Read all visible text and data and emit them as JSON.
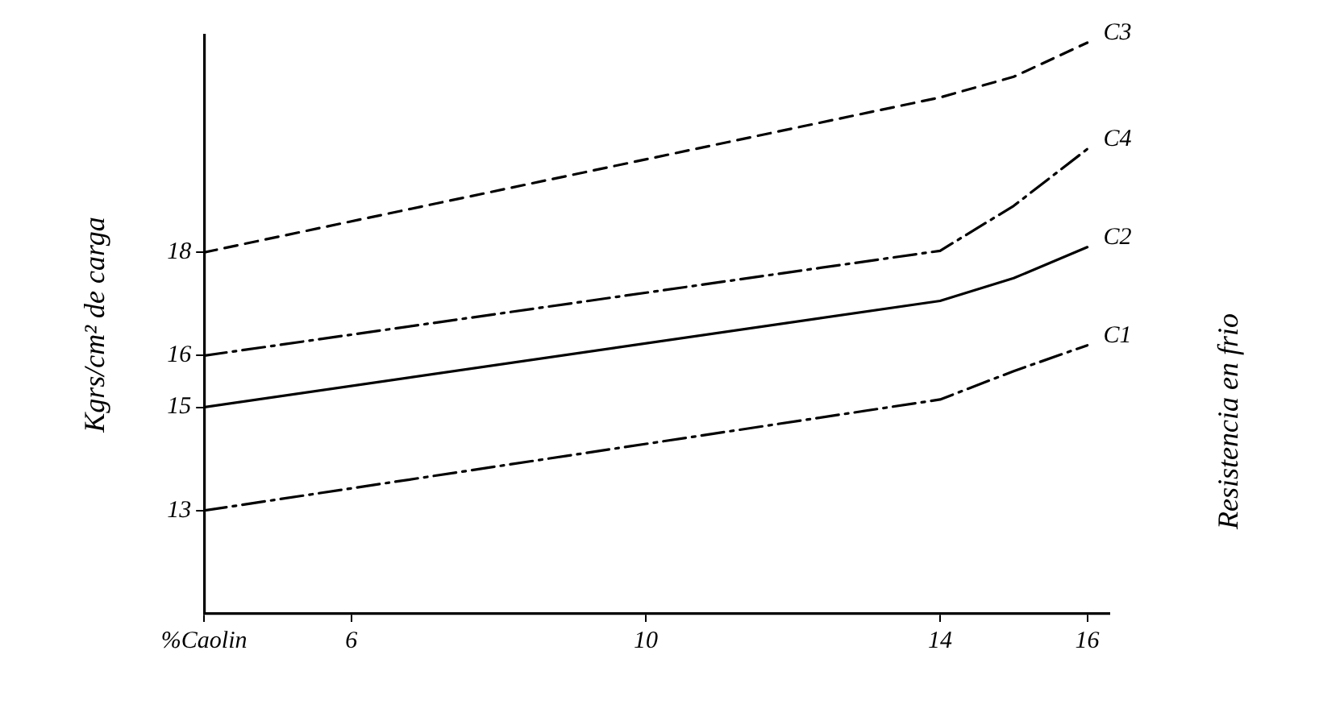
{
  "chart_data": {
    "type": "line",
    "ylabel": "Kgrs/cm² de carga",
    "y2label": "Resistencia en frio",
    "x": [
      4,
      14,
      15,
      16
    ],
    "series": [
      {
        "name": "C1",
        "color": "#000000",
        "line_style": "dashdot",
        "values": [
          13,
          15.15,
          15.7,
          16.2
        ]
      },
      {
        "name": "C2",
        "color": "#000000",
        "line_style": "solid",
        "values": [
          15,
          17.06,
          17.5,
          18.1
        ]
      },
      {
        "name": "C4",
        "color": "#000000",
        "line_style": "dashdot",
        "values": [
          16,
          18.03,
          18.9,
          20
        ]
      },
      {
        "name": "C3",
        "color": "#000000",
        "line_style": "dashed",
        "values": [
          18,
          21,
          21.4,
          22.06
        ]
      }
    ],
    "xlim": [
      4,
      16.3
    ],
    "xticks": [
      {
        "value": 4,
        "label": "%Caolin"
      },
      6,
      10,
      14,
      16
    ],
    "ylim": [
      11,
      22.2
    ],
    "yticks": [
      13,
      15,
      16,
      18
    ],
    "grid": false,
    "legend": false,
    "marker": "none"
  }
}
